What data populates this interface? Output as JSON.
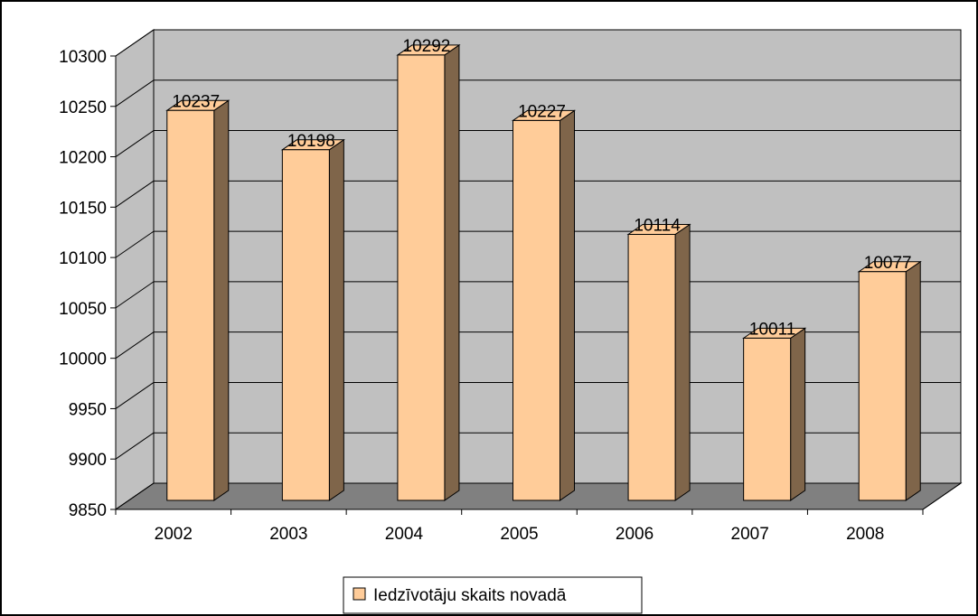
{
  "chart_data": {
    "type": "bar",
    "title": "",
    "xlabel": "",
    "ylabel": "",
    "categories": [
      "2002",
      "2003",
      "2004",
      "2005",
      "2006",
      "2007",
      "2008"
    ],
    "series": [
      {
        "name": "Iedzīvotāju skaits novadā",
        "values": [
          10237,
          10198,
          10292,
          10227,
          10114,
          10011,
          10077
        ]
      }
    ],
    "data_labels": [
      "10237",
      "10198",
      "10292",
      "10227",
      "10114",
      "10011",
      "10077"
    ],
    "ylim": [
      9850,
      10300
    ],
    "yticks": [
      "9850",
      "9900",
      "9950",
      "10000",
      "10050",
      "10100",
      "10150",
      "10200",
      "10250",
      "10300"
    ],
    "grid": true,
    "legend_position": "bottom",
    "style": "3d-column",
    "colors": {
      "bar_front": "#FFCC99",
      "bar_side": "#7F654A",
      "bar_top": "#FFCC99",
      "wall": "#C0C0C0",
      "floor": "#808080",
      "gridline": "#000000"
    }
  }
}
